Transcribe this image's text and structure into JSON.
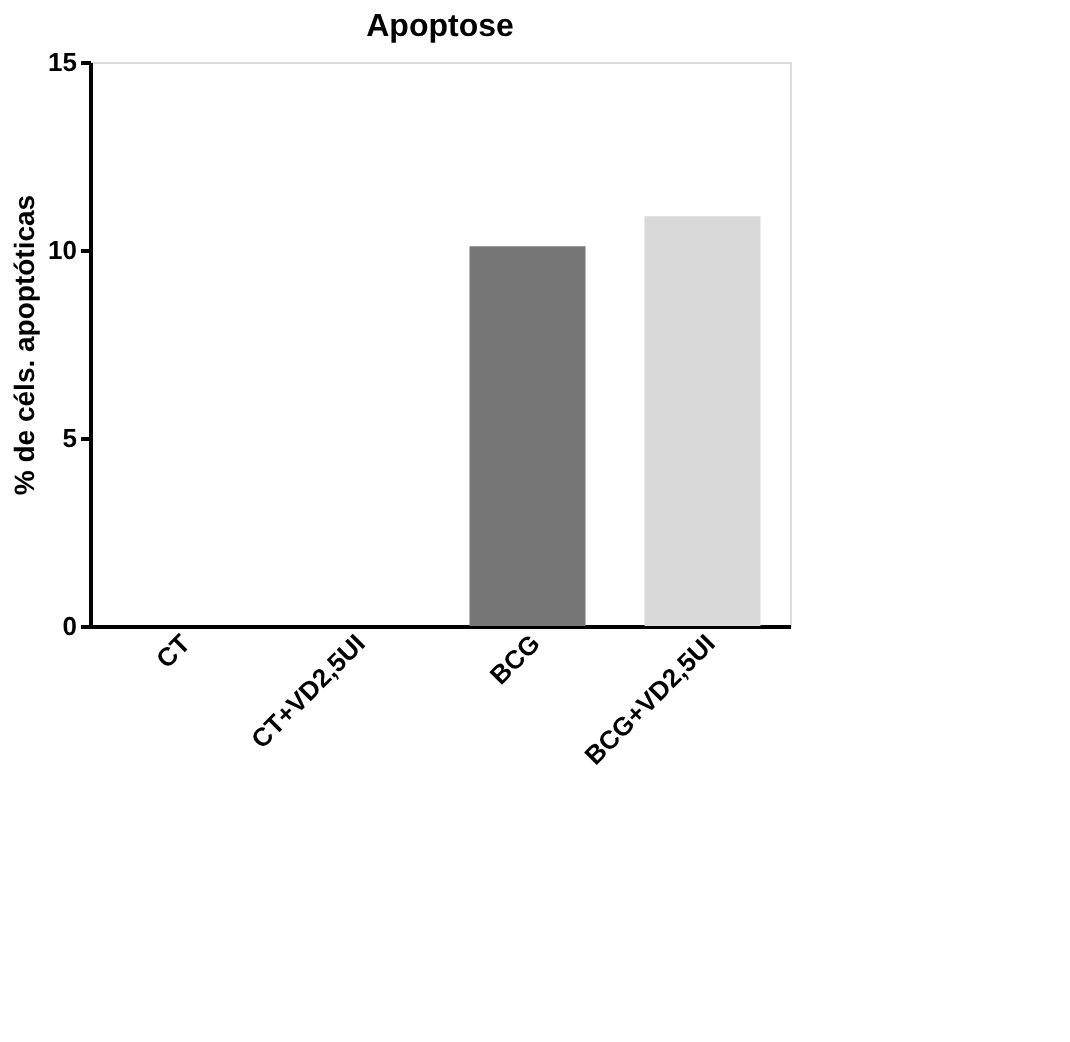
{
  "chart_data": {
    "type": "bar",
    "title": "Apoptose",
    "ylabel": "% de céls. apoptóticas",
    "categories": [
      "CT",
      "CT+VD2,5UI",
      "BCG",
      "BCG+VD2,5UI"
    ],
    "values": [
      0,
      0,
      10.1,
      10.9
    ],
    "colors": [
      "#000000",
      "#000000",
      "#777777",
      "#d9d9d9"
    ],
    "ylim": [
      0,
      15
    ],
    "yticks": [
      0,
      5,
      10,
      15
    ],
    "grid": false,
    "legend": false
  }
}
